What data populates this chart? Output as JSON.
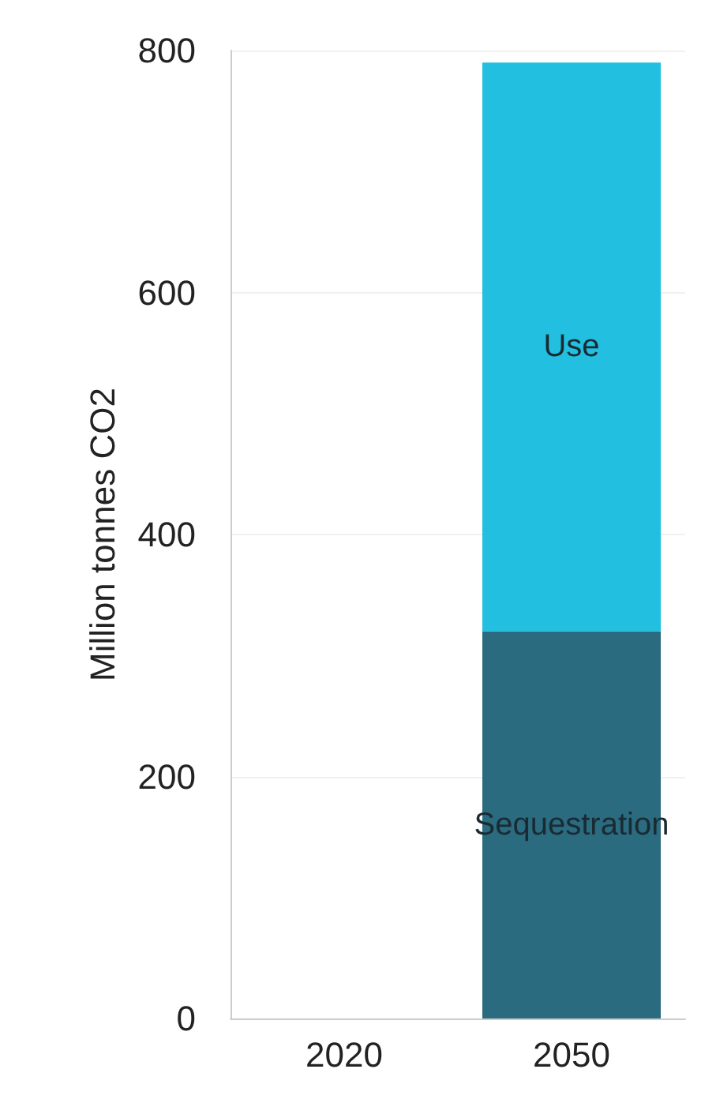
{
  "chart_data": {
    "type": "bar",
    "stacked": true,
    "ylabel": "Million tonnes CO2",
    "categories": [
      "2020",
      "2050"
    ],
    "series": [
      {
        "name": "Sequestration",
        "color": "#2a6b7f",
        "values": [
          null,
          320
        ]
      },
      {
        "name": "Use",
        "color": "#22bfe0",
        "values": [
          null,
          470
        ]
      }
    ],
    "ylim": [
      0,
      800
    ],
    "yticks": [
      0,
      200,
      400,
      600,
      800
    ],
    "grid": "y",
    "legend": false
  }
}
